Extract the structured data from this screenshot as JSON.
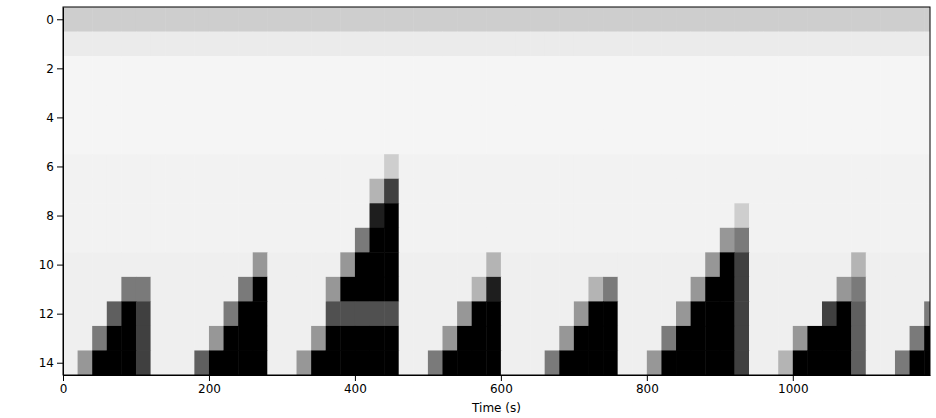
{
  "chart_data": {
    "type": "heatmap",
    "x_label": "Time (s)",
    "color": "Greys",
    "xlim": [
      0,
      1188
    ],
    "ylim": [
      14.5,
      -0.5
    ],
    "xticks": [
      0,
      200,
      400,
      600,
      800,
      1000
    ],
    "yticks": [
      0,
      2,
      4,
      6,
      8,
      10,
      12,
      14
    ],
    "zlim": [
      0,
      1
    ],
    "x": [
      10,
      30,
      50,
      70,
      90,
      110,
      130,
      150,
      170,
      190,
      210,
      230,
      250,
      270,
      290,
      310,
      330,
      350,
      370,
      390,
      410,
      430,
      450,
      470,
      490,
      510,
      530,
      550,
      570,
      590,
      610,
      630,
      650,
      670,
      690,
      710,
      730,
      750,
      770,
      790,
      810,
      830,
      850,
      870,
      890,
      910,
      930,
      950,
      970,
      990,
      1010,
      1030,
      1050,
      1070,
      1090,
      1110,
      1130,
      1150,
      1170,
      1190
    ],
    "y": [
      0,
      1,
      2,
      3,
      4,
      5,
      6,
      7,
      8,
      9,
      10,
      11,
      12,
      13,
      14
    ],
    "z": [
      [
        0.3,
        0.3,
        0.3,
        0.3,
        0.3,
        0.3,
        0.3,
        0.3,
        0.3,
        0.3,
        0.3,
        0.3,
        0.3,
        0.3,
        0.3,
        0.3,
        0.3,
        0.3,
        0.3,
        0.3,
        0.3,
        0.3,
        0.3,
        0.3,
        0.3,
        0.3,
        0.3,
        0.3,
        0.3,
        0.3,
        0.3,
        0.3,
        0.3,
        0.3,
        0.3,
        0.3,
        0.3,
        0.3,
        0.3,
        0.3,
        0.3,
        0.3,
        0.3,
        0.3,
        0.3,
        0.3,
        0.3,
        0.3,
        0.3,
        0.3,
        0.3,
        0.3,
        0.3,
        0.3,
        0.3,
        0.3,
        0.3,
        0.3,
        0.3,
        0.3
      ],
      [
        0.15,
        0.15,
        0.15,
        0.15,
        0.15,
        0.15,
        0.15,
        0.15,
        0.15,
        0.15,
        0.15,
        0.15,
        0.15,
        0.15,
        0.15,
        0.15,
        0.15,
        0.15,
        0.15,
        0.15,
        0.15,
        0.15,
        0.15,
        0.15,
        0.15,
        0.15,
        0.15,
        0.15,
        0.15,
        0.15,
        0.15,
        0.15,
        0.15,
        0.15,
        0.15,
        0.15,
        0.15,
        0.15,
        0.15,
        0.15,
        0.15,
        0.15,
        0.15,
        0.15,
        0.15,
        0.15,
        0.15,
        0.15,
        0.15,
        0.15,
        0.15,
        0.15,
        0.15,
        0.15,
        0.15,
        0.15,
        0.15,
        0.15,
        0.15,
        0.15
      ],
      [
        0.08,
        0.08,
        0.08,
        0.08,
        0.08,
        0.08,
        0.08,
        0.08,
        0.08,
        0.08,
        0.08,
        0.08,
        0.08,
        0.08,
        0.08,
        0.08,
        0.08,
        0.08,
        0.08,
        0.08,
        0.08,
        0.08,
        0.08,
        0.08,
        0.08,
        0.08,
        0.08,
        0.08,
        0.08,
        0.08,
        0.08,
        0.08,
        0.08,
        0.08,
        0.08,
        0.08,
        0.08,
        0.08,
        0.08,
        0.08,
        0.08,
        0.08,
        0.08,
        0.08,
        0.08,
        0.08,
        0.08,
        0.08,
        0.08,
        0.08,
        0.08,
        0.08,
        0.08,
        0.08,
        0.08,
        0.08,
        0.08,
        0.08,
        0.08,
        0.08
      ],
      [
        0.08,
        0.08,
        0.08,
        0.08,
        0.08,
        0.08,
        0.08,
        0.08,
        0.08,
        0.08,
        0.08,
        0.08,
        0.08,
        0.08,
        0.08,
        0.08,
        0.08,
        0.08,
        0.08,
        0.08,
        0.08,
        0.08,
        0.08,
        0.08,
        0.08,
        0.08,
        0.08,
        0.08,
        0.08,
        0.08,
        0.08,
        0.08,
        0.08,
        0.08,
        0.08,
        0.08,
        0.08,
        0.08,
        0.08,
        0.08,
        0.08,
        0.08,
        0.08,
        0.08,
        0.08,
        0.08,
        0.08,
        0.08,
        0.08,
        0.08,
        0.08,
        0.08,
        0.08,
        0.08,
        0.08,
        0.08,
        0.08,
        0.08,
        0.08,
        0.08
      ],
      [
        0.08,
        0.08,
        0.08,
        0.08,
        0.08,
        0.08,
        0.08,
        0.08,
        0.08,
        0.08,
        0.08,
        0.08,
        0.08,
        0.08,
        0.08,
        0.08,
        0.08,
        0.08,
        0.08,
        0.08,
        0.08,
        0.08,
        0.08,
        0.08,
        0.08,
        0.08,
        0.08,
        0.08,
        0.08,
        0.08,
        0.08,
        0.08,
        0.08,
        0.08,
        0.08,
        0.08,
        0.08,
        0.08,
        0.08,
        0.08,
        0.08,
        0.08,
        0.08,
        0.08,
        0.08,
        0.08,
        0.08,
        0.08,
        0.08,
        0.08,
        0.08,
        0.08,
        0.08,
        0.08,
        0.08,
        0.08,
        0.08,
        0.08,
        0.08,
        0.08
      ],
      [
        0.08,
        0.08,
        0.08,
        0.08,
        0.08,
        0.08,
        0.08,
        0.08,
        0.08,
        0.08,
        0.08,
        0.08,
        0.08,
        0.08,
        0.08,
        0.08,
        0.08,
        0.08,
        0.08,
        0.08,
        0.08,
        0.08,
        0.08,
        0.08,
        0.08,
        0.08,
        0.08,
        0.08,
        0.08,
        0.08,
        0.08,
        0.08,
        0.08,
        0.08,
        0.08,
        0.08,
        0.08,
        0.08,
        0.08,
        0.08,
        0.08,
        0.08,
        0.08,
        0.08,
        0.08,
        0.08,
        0.08,
        0.08,
        0.08,
        0.08,
        0.08,
        0.08,
        0.08,
        0.08,
        0.08,
        0.08,
        0.08,
        0.08,
        0.08,
        0.08
      ],
      [
        0.1,
        0.1,
        0.1,
        0.1,
        0.1,
        0.1,
        0.1,
        0.1,
        0.1,
        0.1,
        0.1,
        0.1,
        0.1,
        0.1,
        0.1,
        0.1,
        0.1,
        0.1,
        0.1,
        0.1,
        0.1,
        0.1,
        0.3,
        0.1,
        0.1,
        0.1,
        0.1,
        0.1,
        0.1,
        0.1,
        0.1,
        0.1,
        0.1,
        0.1,
        0.1,
        0.1,
        0.1,
        0.1,
        0.1,
        0.1,
        0.1,
        0.1,
        0.1,
        0.1,
        0.1,
        0.1,
        0.1,
        0.1,
        0.1,
        0.1,
        0.1,
        0.1,
        0.1,
        0.1,
        0.1,
        0.1,
        0.1,
        0.1,
        0.1,
        0.1
      ],
      [
        0.1,
        0.1,
        0.1,
        0.1,
        0.1,
        0.1,
        0.1,
        0.1,
        0.1,
        0.1,
        0.1,
        0.1,
        0.1,
        0.1,
        0.1,
        0.1,
        0.1,
        0.1,
        0.1,
        0.1,
        0.1,
        0.4,
        0.8,
        0.1,
        0.1,
        0.1,
        0.1,
        0.1,
        0.1,
        0.1,
        0.1,
        0.1,
        0.1,
        0.1,
        0.1,
        0.1,
        0.1,
        0.1,
        0.1,
        0.1,
        0.1,
        0.1,
        0.1,
        0.1,
        0.1,
        0.1,
        0.1,
        0.1,
        0.1,
        0.1,
        0.1,
        0.1,
        0.1,
        0.1,
        0.1,
        0.1,
        0.1,
        0.1,
        0.1,
        0.1
      ],
      [
        0.1,
        0.1,
        0.1,
        0.1,
        0.1,
        0.1,
        0.1,
        0.1,
        0.1,
        0.1,
        0.1,
        0.1,
        0.1,
        0.1,
        0.1,
        0.1,
        0.1,
        0.1,
        0.1,
        0.1,
        0.1,
        0.9,
        1,
        0.1,
        0.1,
        0.1,
        0.1,
        0.1,
        0.1,
        0.1,
        0.1,
        0.1,
        0.1,
        0.1,
        0.1,
        0.1,
        0.1,
        0.1,
        0.1,
        0.1,
        0.1,
        0.1,
        0.1,
        0.1,
        0.1,
        0.1,
        0.3,
        0.1,
        0.1,
        0.1,
        0.1,
        0.1,
        0.1,
        0.1,
        0.1,
        0.1,
        0.1,
        0.1,
        0.1,
        0.1
      ],
      [
        0.1,
        0.1,
        0.1,
        0.1,
        0.1,
        0.1,
        0.1,
        0.1,
        0.1,
        0.1,
        0.1,
        0.1,
        0.1,
        0.1,
        0.1,
        0.1,
        0.1,
        0.1,
        0.1,
        0.1,
        0.6,
        1,
        1,
        0.1,
        0.1,
        0.1,
        0.1,
        0.1,
        0.1,
        0.1,
        0.1,
        0.1,
        0.1,
        0.1,
        0.1,
        0.1,
        0.1,
        0.1,
        0.1,
        0.1,
        0.1,
        0.1,
        0.1,
        0.1,
        0.1,
        0.5,
        0.6,
        0.1,
        0.1,
        0.1,
        0.1,
        0.1,
        0.1,
        0.1,
        0.1,
        0.1,
        0.1,
        0.1,
        0.1,
        0.1
      ],
      [
        0.12,
        0.12,
        0.12,
        0.12,
        0.12,
        0.12,
        0.12,
        0.12,
        0.12,
        0.12,
        0.12,
        0.12,
        0.12,
        0.5,
        0.12,
        0.12,
        0.12,
        0.12,
        0.12,
        0.5,
        1,
        1,
        1,
        0.12,
        0.12,
        0.12,
        0.12,
        0.12,
        0.12,
        0.4,
        0.12,
        0.12,
        0.12,
        0.12,
        0.12,
        0.12,
        0.12,
        0.12,
        0.12,
        0.12,
        0.12,
        0.12,
        0.12,
        0.12,
        0.5,
        1,
        0.8,
        0.12,
        0.12,
        0.12,
        0.12,
        0.12,
        0.12,
        0.12,
        0.4,
        0.12,
        0.12,
        0.12,
        0.12,
        0.12
      ],
      [
        0.12,
        0.12,
        0.12,
        0.12,
        0.6,
        0.6,
        0.12,
        0.12,
        0.12,
        0.12,
        0.12,
        0.12,
        0.6,
        1,
        0.12,
        0.12,
        0.12,
        0.12,
        0.5,
        1,
        1,
        1,
        1,
        0.12,
        0.12,
        0.12,
        0.12,
        0.12,
        0.4,
        0.9,
        0.12,
        0.12,
        0.12,
        0.12,
        0.12,
        0.12,
        0.4,
        0.6,
        0.12,
        0.12,
        0.12,
        0.12,
        0.12,
        0.5,
        1,
        1,
        0.8,
        0.12,
        0.12,
        0.12,
        0.12,
        0.12,
        0.12,
        0.5,
        0.6,
        0.12,
        0.12,
        0.12,
        0.12,
        0.12
      ],
      [
        0.12,
        0.12,
        0.12,
        0.7,
        1,
        0.8,
        0.12,
        0.12,
        0.12,
        0.12,
        0.12,
        0.6,
        1,
        1,
        0.12,
        0.12,
        0.12,
        0.12,
        0.75,
        0.75,
        0.75,
        0.75,
        0.75,
        0.12,
        0.12,
        0.12,
        0.12,
        0.5,
        1,
        1,
        0.12,
        0.12,
        0.12,
        0.12,
        0.12,
        0.5,
        1,
        1,
        0.12,
        0.12,
        0.12,
        0.12,
        0.5,
        1,
        1,
        1,
        0.8,
        0.12,
        0.12,
        0.12,
        0.12,
        0.12,
        0.8,
        1,
        0.7,
        0.12,
        0.12,
        0.12,
        0.12,
        0.6
      ],
      [
        0.12,
        0.12,
        0.6,
        1,
        1,
        0.8,
        0.12,
        0.12,
        0.12,
        0.12,
        0.5,
        1,
        1,
        1,
        0.12,
        0.12,
        0.12,
        0.5,
        1,
        1,
        1,
        1,
        1,
        0.12,
        0.12,
        0.12,
        0.5,
        1,
        1,
        1,
        0.12,
        0.12,
        0.12,
        0.12,
        0.5,
        1,
        1,
        1,
        0.12,
        0.12,
        0.12,
        0.6,
        1,
        1,
        1,
        1,
        0.8,
        0.12,
        0.12,
        0.12,
        0.5,
        1,
        1,
        1,
        0.7,
        0.12,
        0.12,
        0.12,
        0.6,
        1
      ],
      [
        0.12,
        0.5,
        1,
        1,
        1,
        0.8,
        0.12,
        0.12,
        0.12,
        0.7,
        1,
        1,
        1,
        1,
        0.12,
        0.12,
        0.5,
        1,
        1,
        1,
        1,
        1,
        1,
        0.12,
        0.12,
        0.6,
        1,
        1,
        1,
        1,
        0.12,
        0.12,
        0.12,
        0.6,
        1,
        1,
        1,
        1,
        0.12,
        0.12,
        0.5,
        1,
        1,
        1,
        1,
        1,
        0.8,
        0.12,
        0.12,
        0.4,
        1,
        1,
        1,
        1,
        0.7,
        0.12,
        0.12,
        0.6,
        1,
        1
      ]
    ]
  }
}
